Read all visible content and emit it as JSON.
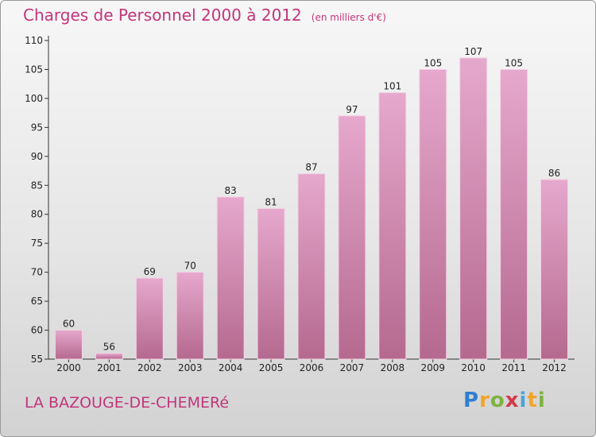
{
  "header": {
    "title": "Charges de Personnel 2000 à 2012",
    "unit": "(en milliers d'€)"
  },
  "footer": {
    "commune": "LA BAZOUGE-DE-CHEMERé",
    "logo_letters": [
      "P",
      "r",
      "o",
      "x",
      "i",
      "t",
      "i"
    ]
  },
  "colors": {
    "accent": "#c2357b",
    "bar_top": "#e6a8cd",
    "bar_bottom": "#b5698f",
    "logo": [
      "#2e7fd1",
      "#f0a52b",
      "#7db341",
      "#d23a4a",
      "#4aa4d9",
      "#f0a52b",
      "#7db341"
    ]
  },
  "chart_data": {
    "type": "bar",
    "title": "Charges de Personnel 2000 à 2012",
    "subtitle": "(en milliers d'€)",
    "categories": [
      "2000",
      "2001",
      "2002",
      "2003",
      "2004",
      "2005",
      "2006",
      "2007",
      "2008",
      "2009",
      "2010",
      "2011",
      "2012"
    ],
    "values": [
      60,
      56,
      69,
      70,
      83,
      81,
      87,
      97,
      101,
      105,
      107,
      105,
      86
    ],
    "ylim": [
      55,
      110
    ],
    "yticks": [
      55,
      60,
      65,
      70,
      75,
      80,
      85,
      90,
      95,
      100,
      105,
      110
    ],
    "grid": false,
    "legend": "none"
  }
}
